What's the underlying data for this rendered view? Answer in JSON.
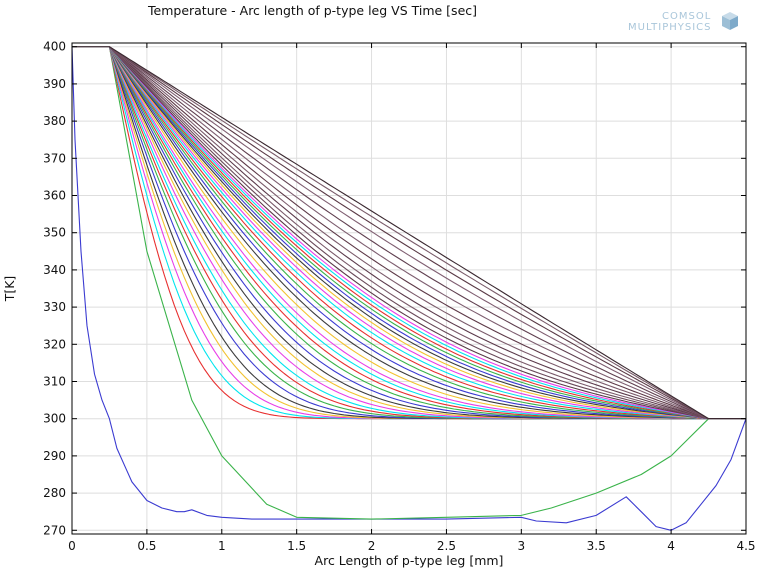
{
  "chart_data": {
    "type": "line",
    "title": "Temperature - Arc length of p-type leg VS Time [sec]",
    "xlabel": "Arc Length of p-type leg [mm]",
    "ylabel": "T[K]",
    "xlim": [
      0,
      4.5
    ],
    "ylim": [
      269,
      401
    ],
    "xticks": [
      "0",
      "0.5",
      "1",
      "1.5",
      "2",
      "2.5",
      "3",
      "3.5",
      "4",
      "4.5"
    ],
    "yticks": [
      "270",
      "280",
      "290",
      "300",
      "310",
      "320",
      "330",
      "340",
      "350",
      "360",
      "370",
      "380",
      "390",
      "400"
    ],
    "grid": true,
    "legend": "none",
    "left_plateau": {
      "x": [
        0,
        0.25
      ],
      "T": 400
    },
    "right_plateau": {
      "x": [
        4.25,
        4.5
      ],
      "T": 300
    },
    "left_boundary_x": 0.25,
    "right_boundary_x": 4.25,
    "series": [
      {
        "color": "#3b3bd1",
        "x": [
          0,
          0.02,
          0.06,
          0.1,
          0.15,
          0.2,
          0.25,
          0.3,
          0.4,
          0.5,
          0.6,
          0.7,
          0.75,
          0.8,
          0.9,
          1.0,
          1.2,
          1.5,
          2.0,
          2.5,
          3.0,
          3.1,
          3.3,
          3.5,
          3.7,
          3.8,
          3.9,
          4.0,
          4.1,
          4.2,
          4.3,
          4.4,
          4.5
        ],
        "y": [
          400,
          375,
          345,
          325,
          312,
          305,
          300,
          292,
          283,
          278,
          276,
          275,
          275,
          275.5,
          274,
          273.5,
          273,
          273,
          273,
          273,
          273.5,
          272.5,
          272,
          274,
          279,
          275,
          271,
          270,
          272,
          277,
          282,
          289,
          300
        ]
      },
      {
        "color": "#3ab34a",
        "x": [
          0.25,
          0.5,
          0.8,
          1.0,
          1.3,
          1.5,
          2.0,
          2.5,
          3.0,
          3.2,
          3.5,
          3.8,
          4.0,
          4.1,
          4.25
        ],
        "y": [
          400,
          345,
          305,
          290,
          277,
          273.5,
          273,
          273.5,
          274,
          276,
          280,
          285,
          290,
          294,
          300
        ]
      },
      {
        "color": "#e83030",
        "d": 0.055
      },
      {
        "color": "#00e5ee",
        "d": 0.07
      },
      {
        "color": "#e83ee8",
        "d": 0.085
      },
      {
        "color": "#f2c230",
        "d": 0.1
      },
      {
        "color": "#3c3c3c",
        "d": 0.115
      },
      {
        "color": "#3b3bd1",
        "d": 0.135
      },
      {
        "color": "#3ab34a",
        "d": 0.155
      },
      {
        "color": "#e83030",
        "d": 0.175
      },
      {
        "color": "#00e5ee",
        "d": 0.195
      },
      {
        "color": "#e83ee8",
        "d": 0.22
      },
      {
        "color": "#f2c230",
        "d": 0.245
      },
      {
        "color": "#3c3c3c",
        "d": 0.27
      },
      {
        "color": "#3b3bd1",
        "d": 0.3
      },
      {
        "color": "#3ab34a",
        "d": 0.33
      },
      {
        "color": "#e83030",
        "d": 0.36
      },
      {
        "color": "#00e5ee",
        "d": 0.39
      },
      {
        "color": "#e83ee8",
        "d": 0.42
      },
      {
        "color": "#f2c230",
        "d": 0.46
      },
      {
        "color": "#3c3c3c",
        "d": 0.5
      },
      {
        "color": "#3b3bd1",
        "d": 0.54
      },
      {
        "color": "#3ab34a",
        "d": 0.58
      },
      {
        "color": "#e83030",
        "d": 0.62
      },
      {
        "color": "#00e5ee",
        "d": 0.66
      },
      {
        "color": "#e83ee8",
        "d": 0.7
      },
      {
        "color": "#f2c230",
        "d": 0.74
      },
      {
        "color": "#3c3c3c",
        "d": 0.78
      },
      {
        "color": "#3b3bd1",
        "d": 0.82
      },
      {
        "color": "#3ab34a",
        "d": 0.86
      },
      {
        "color": "#e83030",
        "d": 0.9
      },
      {
        "color": "#00e5ee",
        "d": 0.94
      },
      {
        "color": "#e83ee8",
        "d": 0.98
      },
      {
        "color": "#5a3c48",
        "d": 1.03
      },
      {
        "color": "#6a4a5a",
        "d": 1.1
      },
      {
        "color": "#7a5a6a",
        "d": 1.18
      },
      {
        "color": "#5c3b4c",
        "d": 1.28
      },
      {
        "color": "#7c5c6c",
        "d": 1.4
      },
      {
        "color": "#5e3a48",
        "d": 1.55
      },
      {
        "color": "#7e5e70",
        "d": 1.75
      },
      {
        "color": "#604050",
        "d": 2.0
      },
      {
        "color": "#805f72",
        "d": 2.35
      },
      {
        "color": "#5a3a46",
        "d": 2.8
      },
      {
        "color": "#7a5c6a",
        "d": 3.5
      },
      {
        "color": "#3a2830",
        "d": 5.0
      }
    ]
  },
  "logo": {
    "line1": "COMSOL",
    "line2": "MULTIPHYSICS"
  }
}
